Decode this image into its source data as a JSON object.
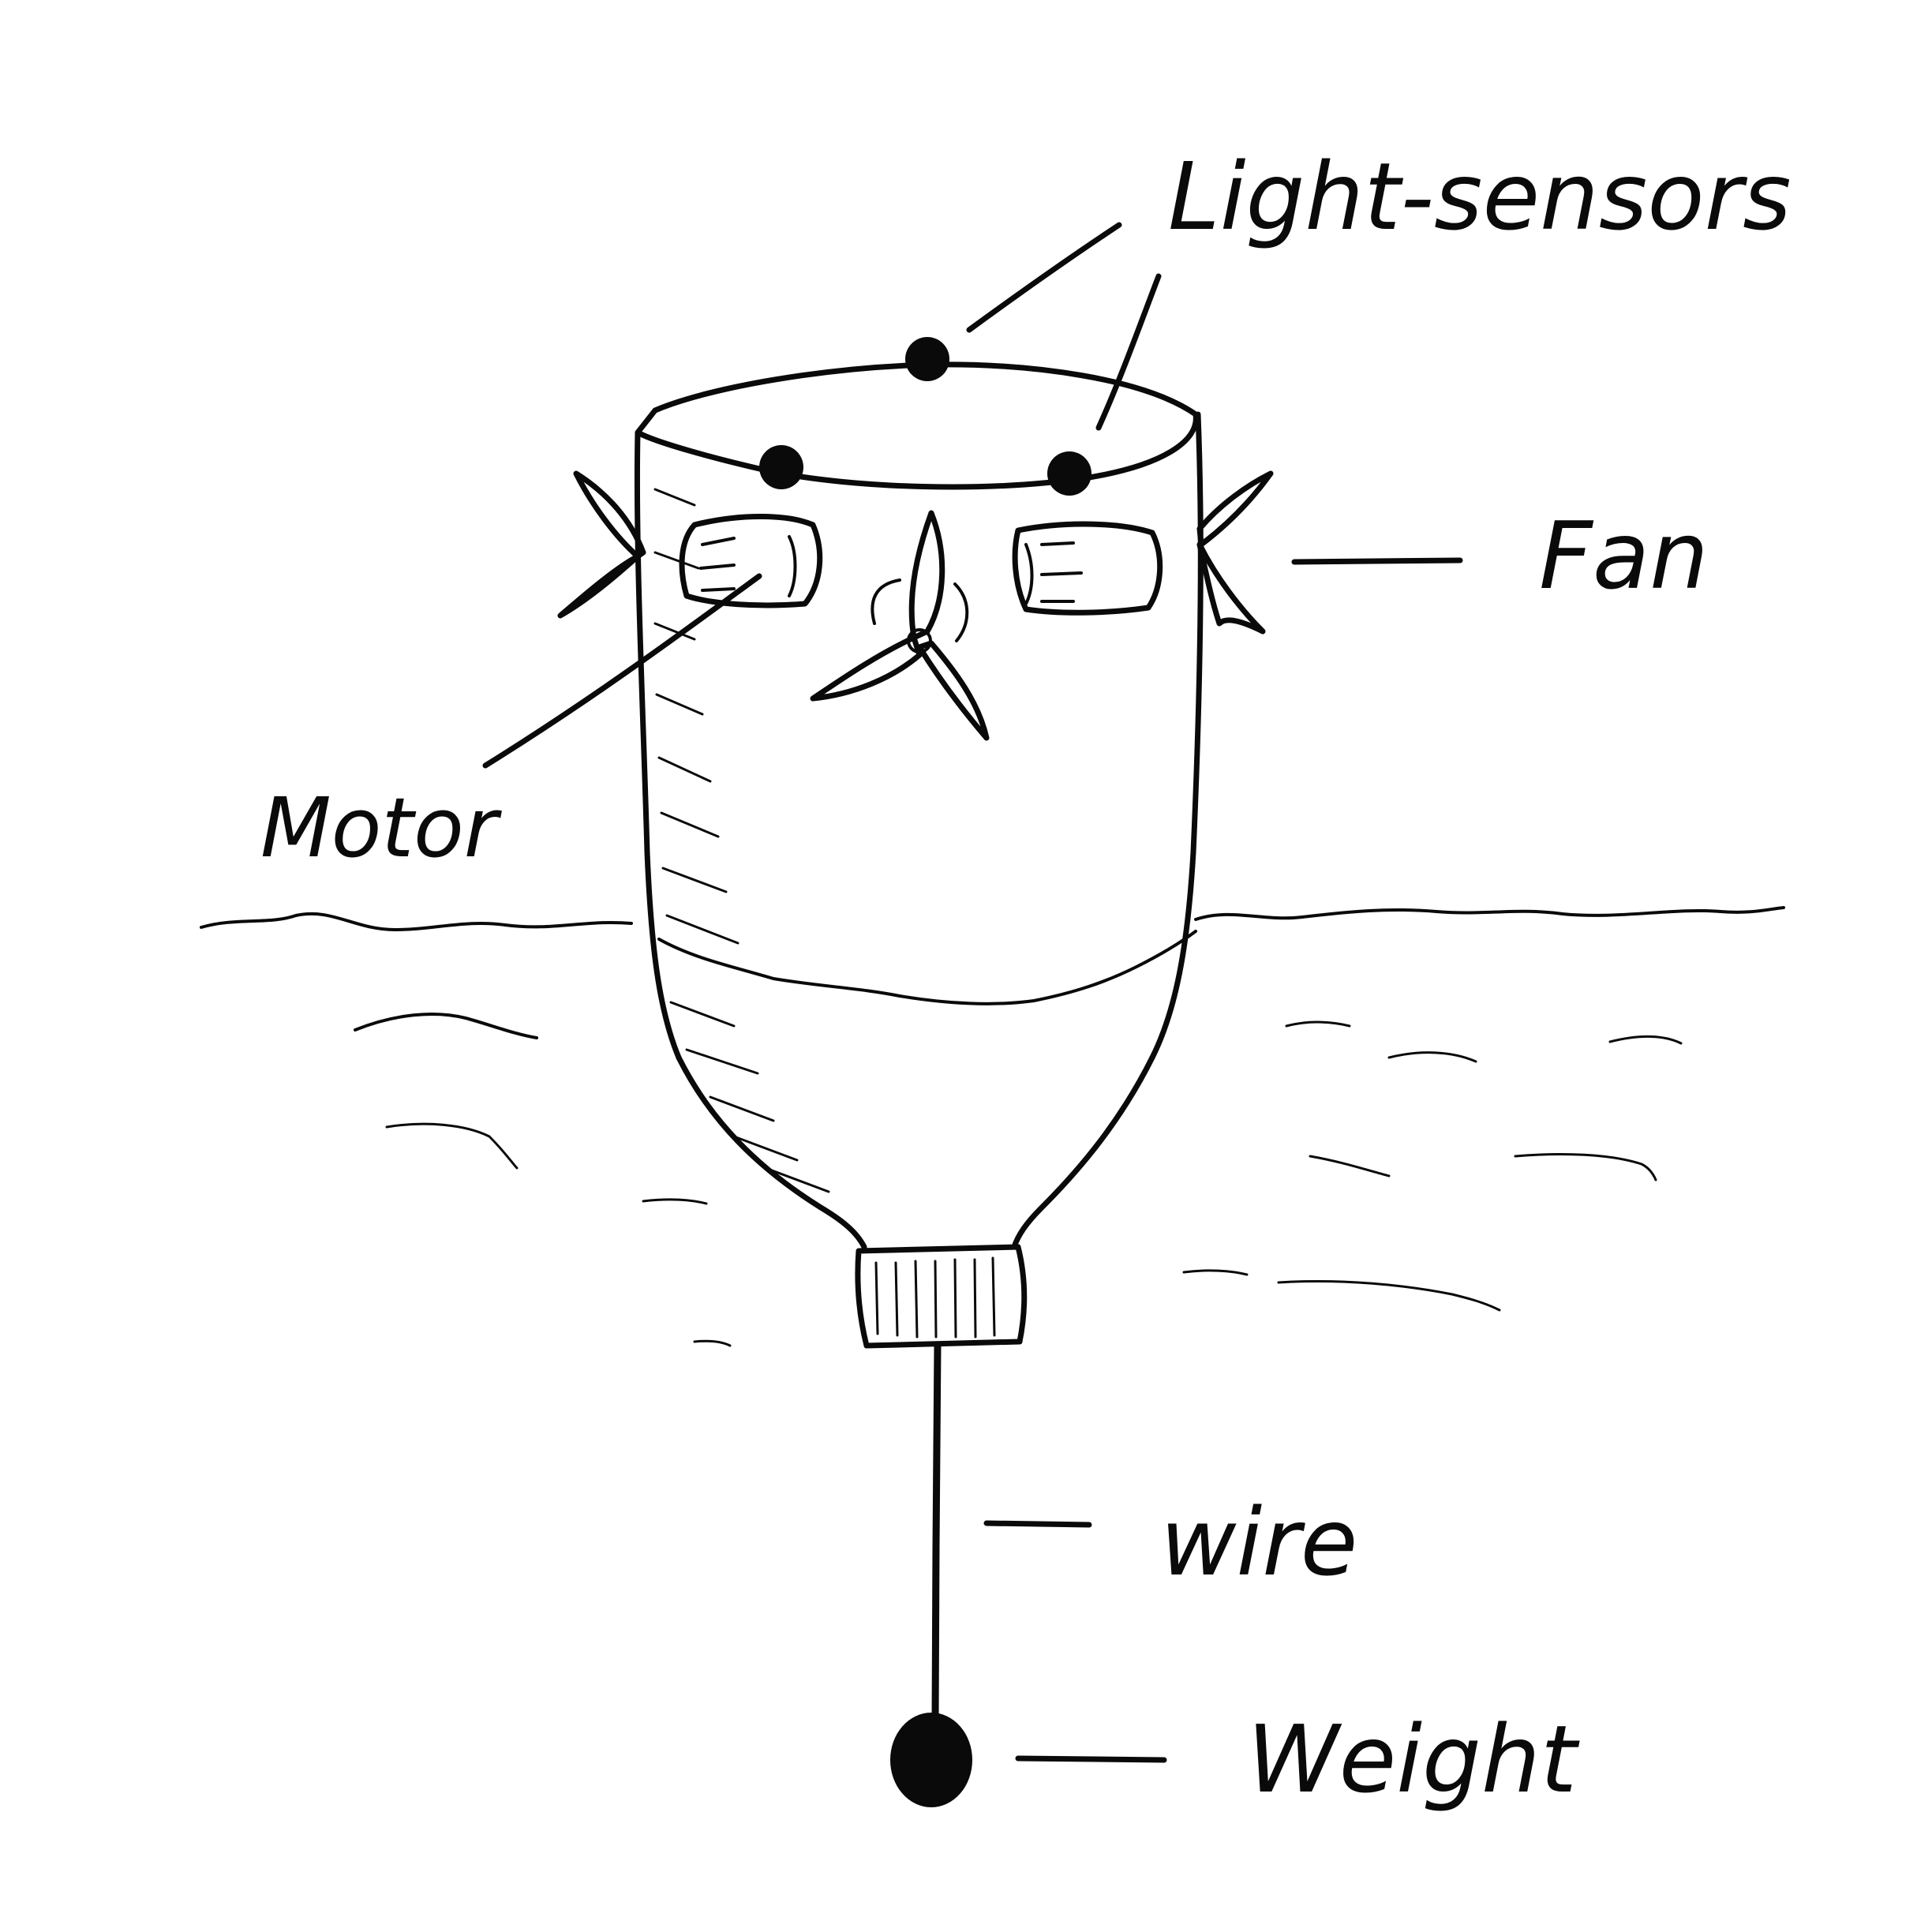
{
  "labels": {
    "light_sensors": "Light-sensors",
    "fan": "Fan",
    "motor": "Motor",
    "wire": "wire",
    "weight": "Weight"
  },
  "colors": {
    "ink": "#0a0a0a",
    "paper": "#ffffff"
  }
}
